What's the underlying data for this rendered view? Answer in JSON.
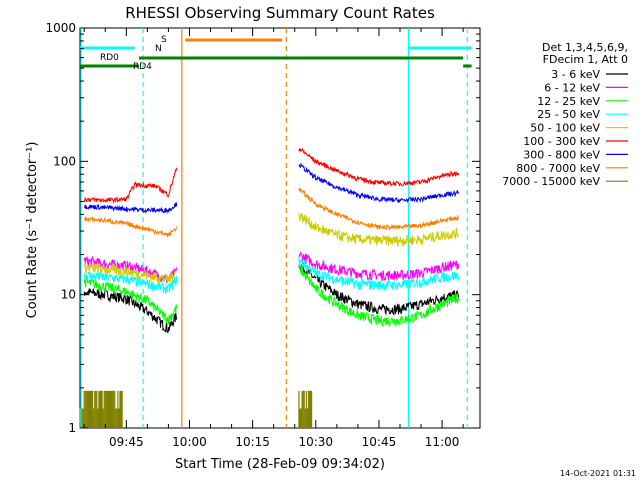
{
  "colors": {
    "black": "#000000",
    "magenta": "#ff00ff",
    "green": "#00ff00",
    "cyan": "#00ffff",
    "yellow": "#cccc00",
    "red": "#ff0000",
    "blue": "#0000ff",
    "orange": "#ff7f00",
    "olive": "#808000",
    "darkgreen": "#008000"
  },
  "footer": {
    "date": "14-Oct-2021 01:31"
  },
  "chart_data": {
    "type": "line",
    "title": "RHESSI Observing Summary Count Rates",
    "xlabel": "Start Time (28-Feb-09 09:34:02)",
    "ylabel": "Count Rate (s⁻¹ detector⁻¹)",
    "y_scale": "log",
    "ylim": [
      1,
      1000
    ],
    "xlim": [
      "09:34",
      "11:09"
    ],
    "x_ticks": [
      "09:45",
      "10:00",
      "10:15",
      "10:30",
      "10:45",
      "11:00"
    ],
    "y_ticks": [
      "1",
      "10",
      "100",
      "1000"
    ],
    "legend_header": [
      "Det 1,3,4,5,6,9,",
      "FDecim 1, Att 0"
    ],
    "series": [
      {
        "name": "3 - 6 keV",
        "color": "#000000",
        "seg1": {
          "x": [
            "09:35",
            "09:40",
            "09:45",
            "09:50",
            "09:55",
            "09:57"
          ],
          "y": [
            10.5,
            10,
            9.3,
            7.5,
            5.5,
            7
          ]
        },
        "seg2": {
          "x": [
            "10:26",
            "10:30",
            "10:35",
            "10:40",
            "10:45",
            "10:50",
            "10:55",
            "11:00",
            "11:04"
          ],
          "y": [
            17,
            13,
            10,
            8.5,
            7.8,
            7.8,
            8.5,
            9.5,
            10
          ]
        }
      },
      {
        "name": "6 - 12 keV",
        "color": "#ff00ff",
        "seg1": {
          "x": [
            "09:35",
            "09:40",
            "09:45",
            "09:50",
            "09:55",
            "09:57"
          ],
          "y": [
            18,
            17,
            16.5,
            15,
            13,
            15
          ]
        },
        "seg2": {
          "x": [
            "10:26",
            "10:30",
            "10:35",
            "10:40",
            "10:45",
            "10:50",
            "10:55",
            "11:00",
            "11:04"
          ],
          "y": [
            20,
            17,
            15.5,
            14.5,
            14,
            14,
            14.5,
            16,
            17
          ]
        }
      },
      {
        "name": "12 - 25 keV",
        "color": "#00ff00",
        "seg1": {
          "x": [
            "09:35",
            "09:40",
            "09:45",
            "09:50",
            "09:55",
            "09:57"
          ],
          "y": [
            12.5,
            11.5,
            10.5,
            9,
            6.5,
            8
          ]
        },
        "seg2": {
          "x": [
            "10:26",
            "10:30",
            "10:35",
            "10:40",
            "10:45",
            "10:50",
            "10:55",
            "11:00",
            "11:04"
          ],
          "y": [
            16,
            11,
            8.5,
            7,
            6.4,
            6.4,
            7,
            8.5,
            9.5
          ]
        }
      },
      {
        "name": "25 - 50 keV",
        "color": "#00ffff",
        "seg1": {
          "x": [
            "09:35",
            "09:40",
            "09:45",
            "09:50",
            "09:55",
            "09:57"
          ],
          "y": [
            14,
            13.5,
            13,
            12,
            11,
            13
          ]
        },
        "seg2": {
          "x": [
            "10:26",
            "10:30",
            "10:35",
            "10:40",
            "10:45",
            "10:50",
            "10:55",
            "11:00",
            "11:04"
          ],
          "y": [
            18,
            14.5,
            13,
            12,
            11.8,
            11.8,
            12.5,
            13.5,
            14
          ]
        }
      },
      {
        "name": "50 - 100 keV",
        "color": "#cccc00",
        "seg1": {
          "x": [
            "09:35",
            "09:40",
            "09:45",
            "09:50",
            "09:55",
            "09:57"
          ],
          "y": [
            16,
            15.5,
            15,
            14,
            13,
            15
          ]
        },
        "seg2": {
          "x": [
            "10:26",
            "10:30",
            "10:35",
            "10:40",
            "10:45",
            "10:50",
            "10:55",
            "11:00",
            "11:04"
          ],
          "y": [
            40,
            32,
            28,
            26,
            25.5,
            25.5,
            26,
            28,
            29
          ]
        }
      },
      {
        "name": "100 - 300 keV",
        "color": "#ff0000",
        "seg1": {
          "x": [
            "09:35",
            "09:40",
            "09:45",
            "09:47",
            "09:52",
            "09:55",
            "09:57"
          ],
          "y": [
            52,
            51,
            52,
            67,
            65,
            56,
            90
          ]
        },
        "seg2": {
          "x": [
            "10:26",
            "10:30",
            "10:35",
            "10:40",
            "10:45",
            "10:50",
            "10:55",
            "11:00",
            "11:04"
          ],
          "y": [
            125,
            100,
            85,
            74,
            69,
            68,
            70,
            78,
            82
          ]
        }
      },
      {
        "name": "300 - 800 keV",
        "color": "#0000ff",
        "seg1": {
          "x": [
            "09:35",
            "09:40",
            "09:45",
            "09:50",
            "09:55",
            "09:57"
          ],
          "y": [
            46,
            45,
            44,
            43,
            43,
            48
          ]
        },
        "seg2": {
          "x": [
            "10:26",
            "10:30",
            "10:35",
            "10:40",
            "10:45",
            "10:50",
            "10:55",
            "11:00",
            "11:04"
          ],
          "y": [
            95,
            75,
            64,
            56,
            52,
            51,
            52,
            56,
            58
          ]
        }
      },
      {
        "name": "800 - 7000 keV",
        "color": "#ff7f00",
        "seg1": {
          "x": [
            "09:35",
            "09:40",
            "09:45",
            "09:50",
            "09:55",
            "09:57"
          ],
          "y": [
            37,
            36,
            34,
            31,
            28,
            32
          ]
        },
        "seg2": {
          "x": [
            "10:26",
            "10:30",
            "10:35",
            "10:40",
            "10:45",
            "10:50",
            "10:55",
            "11:00",
            "11:04"
          ],
          "y": [
            62,
            48,
            40,
            35,
            32,
            32,
            33,
            36,
            38
          ]
        }
      },
      {
        "name": "7000 - 15000 keV",
        "color": "#808000",
        "seg1": {
          "x": [
            "09:34",
            "09:39",
            "09:44"
          ],
          "y": [
            1.9,
            1.9,
            1.9
          ]
        },
        "seg2": {
          "x": [
            "10:26",
            "10:29"
          ],
          "y": [
            1.9,
            1.9
          ]
        }
      }
    ],
    "annotations": [
      "RD0",
      "RD4",
      "N",
      "S"
    ]
  }
}
